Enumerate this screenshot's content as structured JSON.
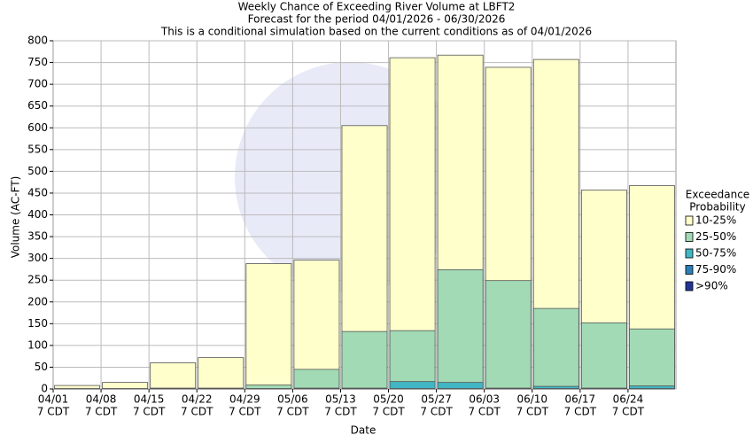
{
  "chart_data": {
    "type": "bar",
    "overlap": true,
    "title": [
      "Weekly Chance of Exceeding River Volume at LBFT2",
      "Forecast for the period 04/01/2026 - 06/30/2026",
      "This is a conditional simulation based on the current conditions as of 04/01/2026"
    ],
    "x_label": "Date",
    "y_label": "Volume (AC-FT)",
    "legend_title": [
      "Exceedance",
      "Probability"
    ],
    "categories": [
      "04/01",
      "04/08",
      "04/15",
      "04/22",
      "04/29",
      "05/06",
      "05/13",
      "05/20",
      "05/27",
      "06/03",
      "06/10",
      "06/17",
      "06/24"
    ],
    "category_sublabels": [
      "7 CDT",
      "7 CDT",
      "7 CDT",
      "7 CDT",
      "7 CDT",
      "7 CDT",
      "7 CDT",
      "7 CDT",
      "7 CDT",
      "7 CDT",
      "7 CDT",
      "7 CDT",
      "7 CDT"
    ],
    "series": [
      {
        "name": "10-25%",
        "color": "#ffffcc",
        "values": [
          8,
          15,
          60,
          72,
          288,
          296,
          605,
          761,
          767,
          739,
          757,
          457,
          467
        ]
      },
      {
        "name": "25-50%",
        "color": "#a1dab4",
        "values": [
          1,
          1,
          2,
          2,
          9,
          45,
          132,
          134,
          274,
          249,
          185,
          152,
          138
        ]
      },
      {
        "name": "50-75%",
        "color": "#41b6c4",
        "values": [
          0,
          0,
          1,
          1,
          1,
          2,
          2,
          17,
          15,
          2,
          6,
          2,
          7
        ]
      },
      {
        "name": "75-90%",
        "color": "#2c7fb8",
        "values": [
          0,
          0,
          0,
          0,
          0,
          1,
          1,
          1,
          1,
          1,
          1,
          1,
          1
        ]
      },
      {
        "name": ">90%",
        "color": "#253494",
        "values": [
          0,
          0,
          0,
          0,
          0,
          0,
          0,
          0,
          0,
          0,
          0,
          0,
          0
        ]
      }
    ],
    "ylim": [
      0,
      800
    ],
    "yticks": [
      0,
      50,
      100,
      150,
      200,
      250,
      300,
      350,
      400,
      450,
      500,
      550,
      600,
      650,
      700,
      750,
      800
    ],
    "grid": true
  }
}
